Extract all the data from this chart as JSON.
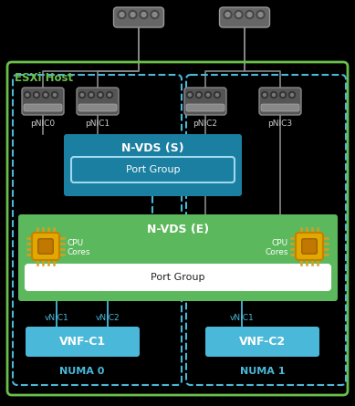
{
  "bg_color": "#000000",
  "esxi_border_color": "#6abf4b",
  "esxi_label": "ESXi Host",
  "esxi_label_color": "#6abf4b",
  "dashed_border_color": "#4ab8d8",
  "nvds_s_color": "#1a7fa0",
  "nvds_e_color": "#5cb85c",
  "nvds_s_label": "N-VDS (S)",
  "nvds_e_label": "N-VDS (E)",
  "port_group_label": "Port Group",
  "vnf_color": "#4ab8d8",
  "vnf_c1_label": "VNF-C1",
  "vnf_c2_label": "VNF-C2",
  "numa0_label": "NUMA 0",
  "numa1_label": "NUMA 1",
  "numa_label_color": "#4ab8d8",
  "cpu_label": "CPU\nCores",
  "pnic_labels": [
    "pNIC0",
    "pNIC1",
    "pNIC2",
    "pNIC3"
  ],
  "vnic_labels_left": [
    "vNIC1",
    "vNIC2"
  ],
  "vnic_label_right": "vNIC1",
  "vnic_label_color": "#4ab8d8",
  "line_color_dark": "#888888",
  "line_color_blue": "#4ab8d8",
  "text_color": "#ffffff",
  "text_color_dark": "#333333"
}
